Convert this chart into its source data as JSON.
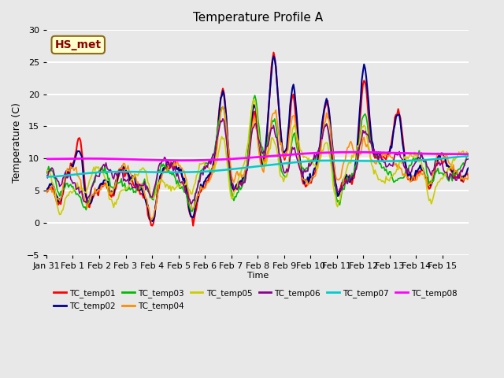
{
  "title": "Temperature Profile A",
  "xlabel": "Time",
  "ylabel": "Temperature (C)",
  "ylim": [
    -5,
    30
  ],
  "annotation_text": "HS_met",
  "annotation_color": "#8B0000",
  "annotation_bg": "#FFFFCC",
  "annotation_border": "#8B6914",
  "legend_entries": [
    "TC_temp01",
    "TC_temp02",
    "TC_temp03",
    "TC_temp04",
    "TC_temp05",
    "TC_temp06",
    "TC_temp07",
    "TC_temp08"
  ],
  "line_colors": [
    "#FF0000",
    "#00008B",
    "#00BB00",
    "#FF8C00",
    "#CCCC00",
    "#8B008B",
    "#00CCCC",
    "#FF00FF"
  ],
  "background_color": "#E8E8E8",
  "grid_color": "#FFFFFF",
  "x_tick_labels": [
    "Jan 31",
    "Feb 1",
    "Feb 2",
    "Feb 3",
    "Feb 4",
    "Feb 5",
    "Feb 6",
    "Feb 7",
    "Feb 8",
    "Feb 9",
    "Feb 10",
    "Feb 11",
    "Feb 12",
    "Feb 13",
    "Feb 14",
    "Feb 15"
  ],
  "y_ticks": [
    -5,
    0,
    5,
    10,
    15,
    20,
    25,
    30
  ]
}
